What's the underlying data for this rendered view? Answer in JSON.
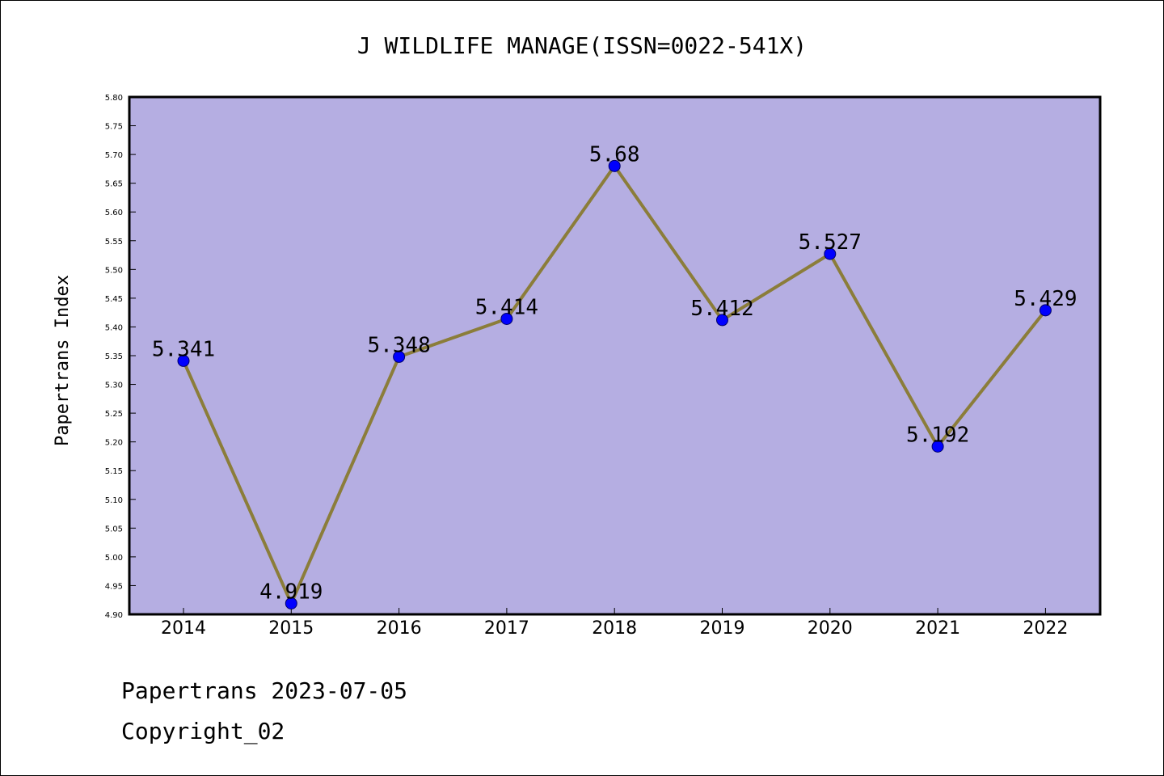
{
  "chart_data": {
    "type": "line",
    "title": "J WILDLIFE MANAGE(ISSN=0022-541X)",
    "ylabel": "Papertrans Index",
    "xlabel": "",
    "categories": [
      "2014",
      "2015",
      "2016",
      "2017",
      "2018",
      "2019",
      "2020",
      "2021",
      "2022"
    ],
    "series": [
      {
        "values": [
          5.341,
          4.919,
          5.348,
          5.414,
          5.68,
          5.412,
          5.527,
          5.192,
          5.429
        ]
      }
    ],
    "data_labels": [
      "5.341",
      "4.919",
      "5.348",
      "5.414",
      "5.68",
      "5.412",
      "5.527",
      "5.192",
      "5.429"
    ],
    "ylim": [
      4.9,
      5.8
    ],
    "ytick_step": 0.05,
    "grid": false,
    "colors": {
      "plot_background": "#b5aee2",
      "line": "#8b7d3a",
      "marker": "#0000ff",
      "axis": "#000000"
    }
  },
  "footer": {
    "date_line": "Papertrans 2023-07-05",
    "copyright_line": "Copyright_02"
  }
}
